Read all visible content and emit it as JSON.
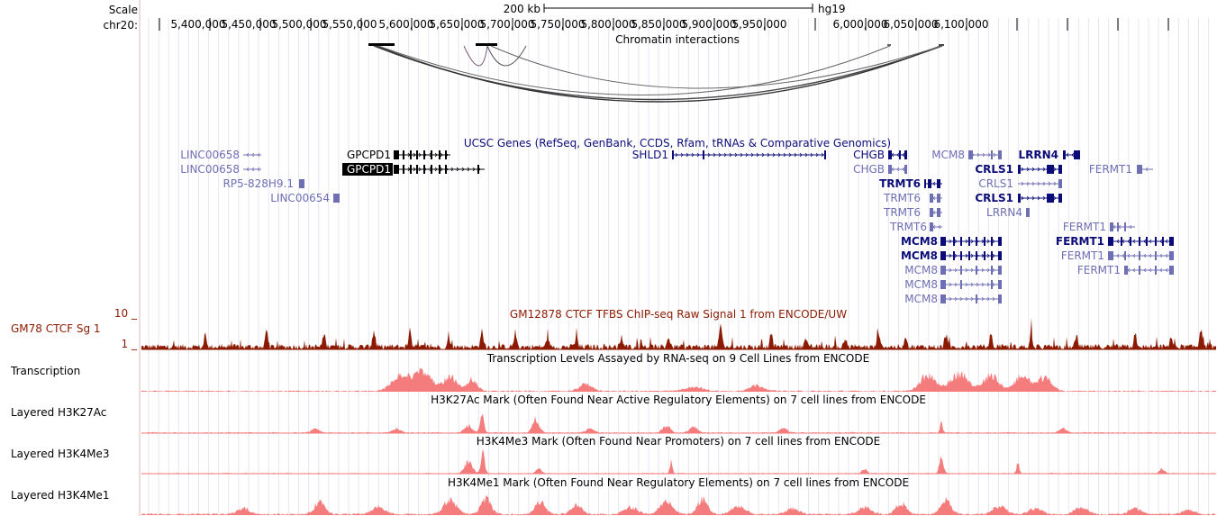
{
  "header": {
    "scale_label": "Scale",
    "chrom_label": "chr20:",
    "scalebar_text": "200 kb",
    "assembly": "hg19"
  },
  "ruler": {
    "ticks": [
      "5,400,000",
      "5,450,000",
      "5,500,000",
      "5,550,000",
      "5,600,000",
      "5,650,000",
      "5,700,000",
      "5,750,000",
      "5,800,000",
      "5,850,000",
      "5,900,000",
      "5,950,000",
      "6,000,000",
      "6,050,000",
      "6,100,000"
    ]
  },
  "tracks": {
    "interactions": {
      "title": "Chromatin interactions"
    },
    "genes": {
      "title": "UCSC Genes (RefSeq, GenBank, CCDS, Rfam, tRNAs & Comparative Genomics)",
      "labels": [
        {
          "text": "LINC00658",
          "color": "#6e6eb3",
          "bold": false
        },
        {
          "text": "LINC00658",
          "color": "#6e6eb3",
          "bold": false
        },
        {
          "text": "RP5-828H9.1",
          "color": "#6e6eb3",
          "bold": false
        },
        {
          "text": "LINC00654",
          "color": "#6e6eb3",
          "bold": false
        },
        {
          "text": "GPCPD1",
          "color": "#000000",
          "bold": false
        },
        {
          "text": "GPCPD1",
          "color": "#ffffff",
          "bold": false
        },
        {
          "text": "SHLD1",
          "color": "#0c0c78",
          "bold": false
        },
        {
          "text": "CHGB",
          "color": "#0c0c78",
          "bold": false
        },
        {
          "text": "CHGB",
          "color": "#6e6eb3",
          "bold": false
        },
        {
          "text": "MCM8",
          "color": "#6e6eb3",
          "bold": false
        },
        {
          "text": "LRRN4",
          "color": "#0c0c78",
          "bold": true
        },
        {
          "text": "CRLS1",
          "color": "#0c0c78",
          "bold": true
        },
        {
          "text": "FERMT1",
          "color": "#6e6eb3",
          "bold": false
        },
        {
          "text": "TRMT6",
          "color": "#0c0c78",
          "bold": true
        },
        {
          "text": "CRLS1",
          "color": "#6e6eb3",
          "bold": false
        },
        {
          "text": "TRMT6",
          "color": "#6e6eb3",
          "bold": false
        },
        {
          "text": "CRLS1",
          "color": "#0c0c78",
          "bold": true
        },
        {
          "text": "TRMT6",
          "color": "#6e6eb3",
          "bold": false
        },
        {
          "text": "LRRN4",
          "color": "#6e6eb3",
          "bold": false
        },
        {
          "text": "TRMT6",
          "color": "#6e6eb3",
          "bold": false
        },
        {
          "text": "FERMT1",
          "color": "#6e6eb3",
          "bold": false
        },
        {
          "text": "MCM8",
          "color": "#0c0c78",
          "bold": true
        },
        {
          "text": "FERMT1",
          "color": "#0c0c78",
          "bold": true
        },
        {
          "text": "MCM8",
          "color": "#0c0c78",
          "bold": true
        },
        {
          "text": "FERMT1",
          "color": "#6e6eb3",
          "bold": false
        },
        {
          "text": "MCM8",
          "color": "#6e6eb3",
          "bold": false
        },
        {
          "text": "FERMT1",
          "color": "#6e6eb3",
          "bold": false
        },
        {
          "text": "MCM8",
          "color": "#6e6eb3",
          "bold": false
        },
        {
          "text": "MCM8",
          "color": "#6e6eb3",
          "bold": false
        }
      ]
    },
    "ctcf": {
      "side_label": "GM78 CTCF Sg 1",
      "title": "GM12878 CTCF TFBS ChIP-seq Raw Signal 1 from ENCODE/UW",
      "scale_max": "10 _",
      "scale_min": "1 _",
      "color": "#8b1a00"
    },
    "transcription": {
      "side_label": "Transcription",
      "title": "Transcription Levels Assayed by RNA-seq on 9 Cell Lines from ENCODE",
      "color": "#f57c7c"
    },
    "h3k27ac": {
      "side_label": "Layered H3K27Ac",
      "title": "H3K27Ac Mark (Often Found Near Active Regulatory Elements) on 7 cell lines from ENCODE",
      "color": "#f57c7c"
    },
    "h3k4me3": {
      "side_label": "Layered H3K4Me3",
      "title": "H3K4Me3 Mark (Often Found Near Promoters) on 7 cell lines from ENCODE",
      "color": "#f57c7c"
    },
    "h3k4me1": {
      "side_label": "Layered H3K4Me1",
      "title": "H3K4Me1 Mark (Often Found Near Regulatory Elements) on 7 cell lines from ENCODE",
      "color": "#f57c7c"
    }
  }
}
